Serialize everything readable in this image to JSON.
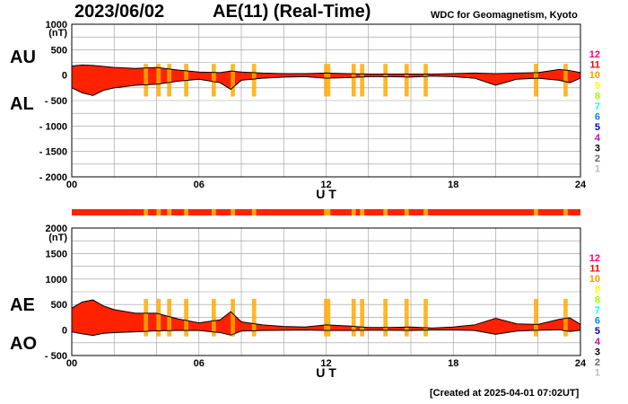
{
  "header": {
    "date": "2023/06/02",
    "title": "AE(11) (Real-Time)",
    "source": "WDC for Geomagnetism, Kyoto"
  },
  "footer": {
    "created": "[Created at 2025-04-01 07:02UT]"
  },
  "colors": {
    "fill_main": "#ff2200",
    "fill_partial": "#ffaa00",
    "grid": "#999999",
    "station_counts": {
      "12": "#ff0077",
      "11": "#ff0000",
      "10": "#ff9900",
      "9": "#ffff00",
      "8": "#99ff00",
      "7": "#00ffff",
      "6": "#0088ff",
      "5": "#0000cc",
      "4": "#cc00cc",
      "3": "#000000",
      "2": "#666666",
      "1": "#bbbbbb"
    }
  },
  "legend": {
    "station_counts": [
      "12",
      "11",
      "10",
      "9",
      "8",
      "7",
      "6",
      "5",
      "4",
      "3",
      "2",
      "1"
    ]
  },
  "chart_data": [
    {
      "type": "area",
      "title": "",
      "xlabel": "U T",
      "ylabel": "(nT)",
      "series_labels": [
        "AU",
        "AL"
      ],
      "x_ticks": [
        "00",
        "06",
        "12",
        "18",
        "24"
      ],
      "y_ticks": [
        "1000",
        "500",
        "0",
        "- 500",
        "- 1000",
        "- 1500",
        "- 2000"
      ],
      "xlim": [
        0,
        24
      ],
      "ylim": [
        -2000,
        1000
      ],
      "grid": true,
      "series": [
        {
          "name": "AU",
          "x": [
            0,
            0.5,
            1,
            1.5,
            2,
            3,
            4,
            5,
            6,
            7,
            7.5,
            8,
            9,
            10,
            11,
            12,
            13,
            14,
            15,
            16,
            17,
            18,
            19,
            20,
            21,
            22,
            23,
            23.5,
            24
          ],
          "values": [
            180,
            200,
            190,
            170,
            150,
            130,
            150,
            100,
            60,
            50,
            80,
            60,
            40,
            30,
            30,
            40,
            30,
            20,
            20,
            20,
            20,
            30,
            40,
            30,
            40,
            50,
            110,
            90,
            50
          ]
        },
        {
          "name": "AL",
          "x": [
            0,
            0.5,
            1,
            1.5,
            2,
            3,
            4,
            5,
            6,
            7,
            7.5,
            8,
            9,
            10,
            11,
            12,
            13,
            14,
            15,
            16,
            17,
            18,
            19,
            20,
            21,
            22,
            23,
            23.5,
            24
          ],
          "values": [
            -250,
            -350,
            -400,
            -300,
            -250,
            -200,
            -180,
            -120,
            -80,
            -150,
            -280,
            -100,
            -60,
            -40,
            -30,
            -60,
            -50,
            -30,
            -30,
            -40,
            -20,
            -30,
            -60,
            -200,
            -80,
            -60,
            -100,
            -150,
            -60
          ]
        }
      ]
    },
    {
      "type": "area",
      "title": "",
      "xlabel": "U T",
      "ylabel": "(nT)",
      "series_labels": [
        "AE",
        "AO"
      ],
      "x_ticks": [
        "00",
        "06",
        "12",
        "18",
        "24"
      ],
      "y_ticks": [
        "2000",
        "1500",
        "1000",
        "500",
        "0",
        "- 500"
      ],
      "xlim": [
        0,
        24
      ],
      "ylim": [
        -500,
        2000
      ],
      "grid": true,
      "series": [
        {
          "name": "AE",
          "x": [
            0,
            0.5,
            1,
            1.5,
            2,
            3,
            4,
            5,
            6,
            7,
            7.5,
            8,
            9,
            10,
            11,
            12,
            13,
            14,
            15,
            16,
            17,
            18,
            19,
            20,
            21,
            22,
            23,
            23.5,
            24
          ],
          "values": [
            430,
            550,
            590,
            470,
            400,
            330,
            330,
            220,
            140,
            200,
            360,
            160,
            100,
            70,
            60,
            100,
            80,
            50,
            50,
            60,
            40,
            60,
            100,
            230,
            120,
            110,
            210,
            240,
            110
          ]
        },
        {
          "name": "AO",
          "x": [
            0,
            0.5,
            1,
            1.5,
            2,
            3,
            4,
            5,
            6,
            7,
            7.5,
            8,
            9,
            10,
            11,
            12,
            13,
            14,
            15,
            16,
            17,
            18,
            19,
            20,
            21,
            22,
            23,
            23.5,
            24
          ],
          "values": [
            -35,
            -75,
            -105,
            -65,
            -50,
            -35,
            -15,
            -10,
            -10,
            -50,
            -100,
            -20,
            -10,
            -5,
            0,
            -10,
            -10,
            -5,
            -5,
            -10,
            0,
            0,
            -10,
            -85,
            -20,
            -5,
            5,
            -30,
            -5
          ]
        }
      ]
    }
  ],
  "station_bar": {
    "segments": [
      {
        "from": 3.4,
        "to": 3.6
      },
      {
        "from": 4.0,
        "to": 4.2
      },
      {
        "from": 4.5,
        "to": 4.7
      },
      {
        "from": 5.3,
        "to": 5.5
      },
      {
        "from": 6.6,
        "to": 6.8
      },
      {
        "from": 7.5,
        "to": 7.7
      },
      {
        "from": 8.5,
        "to": 8.7
      },
      {
        "from": 11.9,
        "to": 12.2
      },
      {
        "from": 13.2,
        "to": 13.4
      },
      {
        "from": 13.6,
        "to": 13.8
      },
      {
        "from": 14.7,
        "to": 14.9
      },
      {
        "from": 15.7,
        "to": 15.9
      },
      {
        "from": 16.6,
        "to": 16.8
      },
      {
        "from": 21.8,
        "to": 22.0
      },
      {
        "from": 23.2,
        "to": 23.4
      }
    ]
  }
}
